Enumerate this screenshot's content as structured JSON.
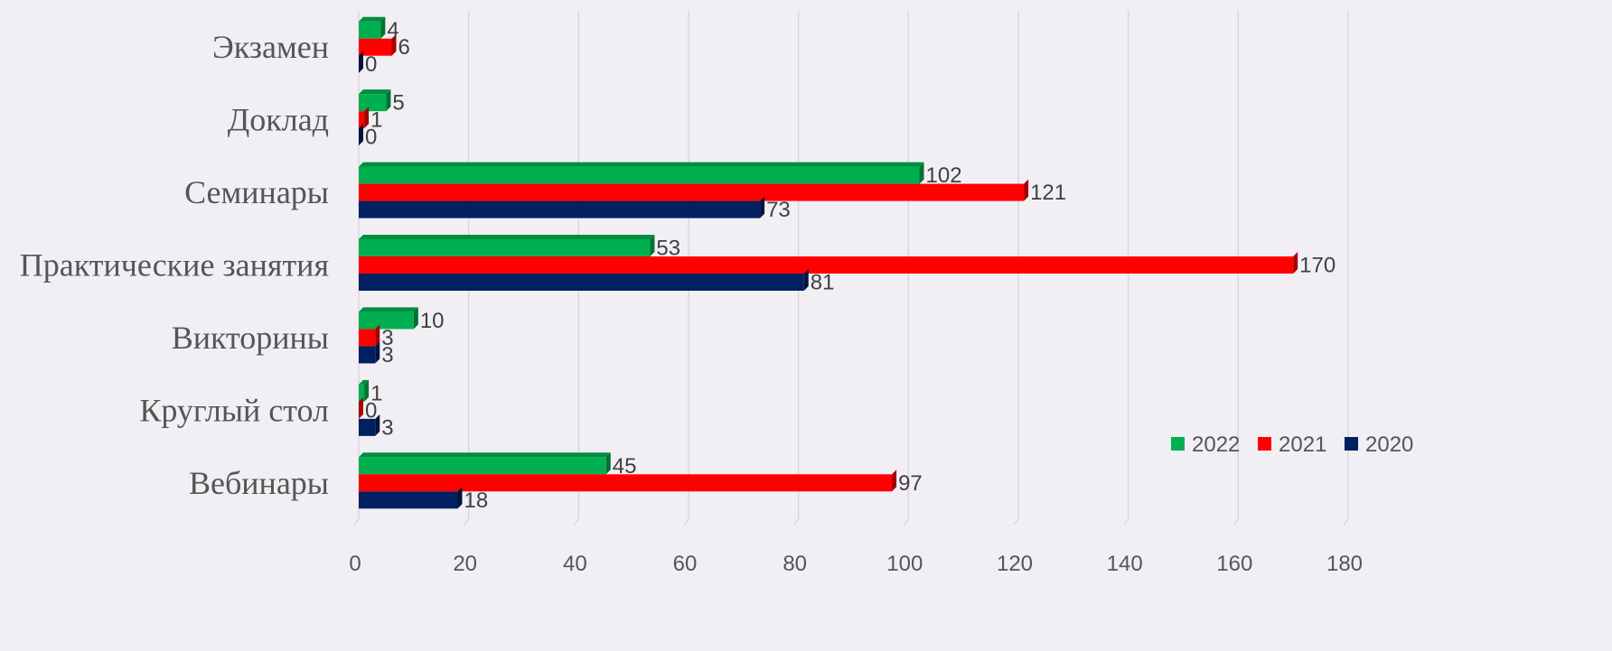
{
  "chart_data": {
    "type": "bar",
    "orientation": "horizontal",
    "title": "",
    "xlabel": "",
    "ylabel": "",
    "categories": [
      "Экзамен",
      "Доклад",
      "Семинары",
      "Практические занятия",
      "Викторины",
      "Круглый стол",
      "Вебинары"
    ],
    "series": [
      {
        "name": "2022",
        "color": "#00b050",
        "values": [
          4,
          5,
          102,
          53,
          10,
          1,
          45
        ]
      },
      {
        "name": "2021",
        "color": "#ff0000",
        "values": [
          6,
          1,
          121,
          170,
          3,
          0,
          97
        ]
      },
      {
        "name": "2020",
        "color": "#002060",
        "values": [
          0,
          0,
          73,
          81,
          3,
          3,
          18
        ]
      }
    ],
    "xlim": [
      0,
      180
    ],
    "xticks": [
      0,
      20,
      40,
      60,
      80,
      100,
      120,
      140,
      160,
      180
    ],
    "grid": "vertical",
    "legend": "bottom-right",
    "style": "3d-clustered-bar"
  }
}
